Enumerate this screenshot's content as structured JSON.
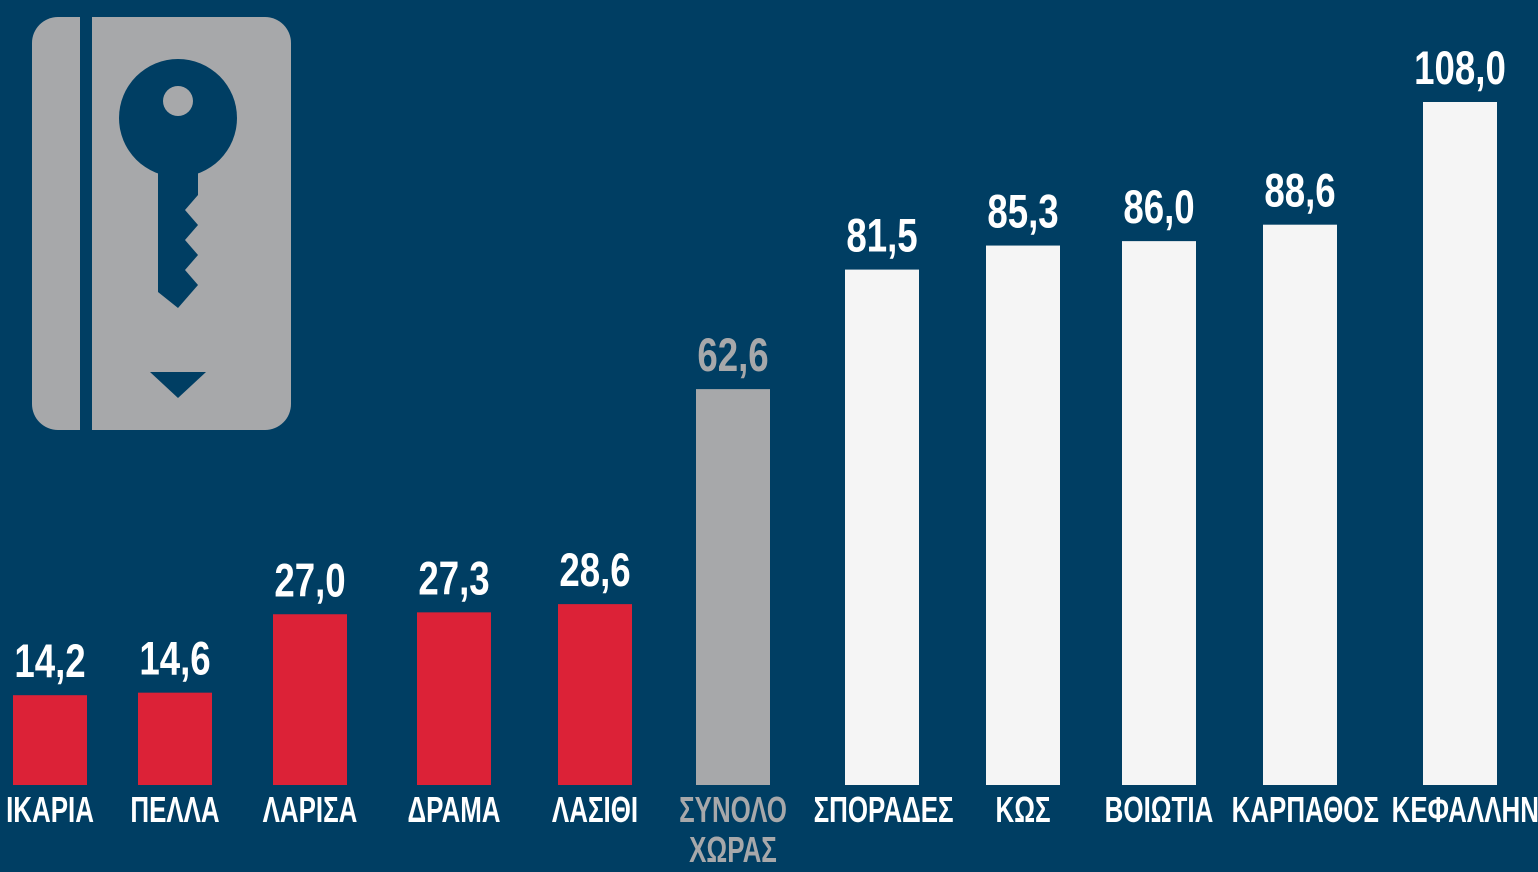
{
  "chart_data": {
    "type": "bar",
    "categories": [
      "ΙΚΑΡΙΑ",
      "ΠΕΛΛΑ",
      "ΛΑΡΙΣΑ",
      "ΔΡΑΜΑ",
      "ΛΑΣΙΘΙ",
      "ΣΥΝΟΛΟ ΧΩΡΑΣ",
      "ΣΠΟΡΑΔΕΣ",
      "ΚΩΣ",
      "ΒΟΙΩΤΙΑ",
      "ΚΑΡΠΑΘΟΣ",
      "ΚΕΦΑΛΛΗΝΙΑ"
    ],
    "values": [
      14.2,
      14.6,
      27.0,
      27.3,
      28.6,
      62.6,
      81.5,
      85.3,
      86.0,
      88.6,
      108.0
    ],
    "value_labels": [
      "14,2",
      "14,6",
      "27,0",
      "27,3",
      "28,6",
      "62,6",
      "81,5",
      "85,3",
      "86,0",
      "88,6",
      "108,0"
    ],
    "colors": [
      "#dc2237",
      "#dc2237",
      "#dc2237",
      "#dc2237",
      "#dc2237",
      "#a7a8aa",
      "#f5f5f5",
      "#f5f5f5",
      "#f5f5f5",
      "#f5f5f5",
      "#f5f5f5"
    ],
    "label_colors": [
      "#ffffff",
      "#ffffff",
      "#ffffff",
      "#ffffff",
      "#ffffff",
      "#a7a8aa",
      "#ffffff",
      "#ffffff",
      "#ffffff",
      "#ffffff",
      "#ffffff"
    ],
    "value_label_colors": [
      "#ffffff",
      "#ffffff",
      "#ffffff",
      "#ffffff",
      "#ffffff",
      "#a7a8aa",
      "#ffffff",
      "#ffffff",
      "#ffffff",
      "#ffffff",
      "#ffffff"
    ],
    "ylim": [
      0,
      108
    ]
  }
}
